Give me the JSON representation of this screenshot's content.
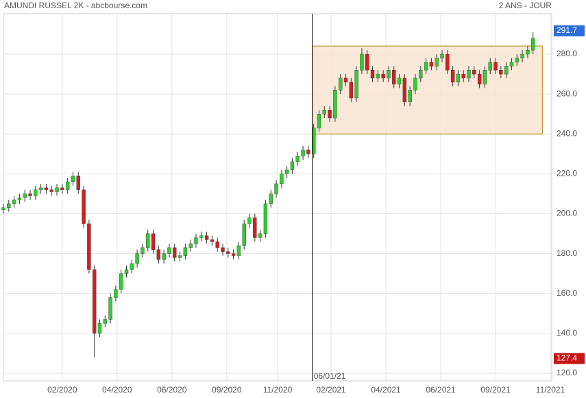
{
  "chart_data": {
    "type": "candlestick",
    "title": "AMUNDI RUSSEL 2K - abcbourse.com",
    "subtitle": "2 ANS - JOUR",
    "up_color": "#33cc33",
    "down_color": "#cc2222",
    "grid": true,
    "xlim": [
      0,
      410
    ],
    "ylim": [
      116.2,
      300.3
    ],
    "xticks": [
      {
        "value": 44,
        "label": "02/2020"
      },
      {
        "value": 85,
        "label": "04/2020"
      },
      {
        "value": 126,
        "label": "06/2020"
      },
      {
        "value": 167,
        "label": "09/2020"
      },
      {
        "value": 205,
        "label": "11/2020"
      },
      {
        "value": 245,
        "label": "02/2021"
      },
      {
        "value": 286,
        "label": "04/2021"
      },
      {
        "value": 327,
        "label": "06/2021"
      },
      {
        "value": 368,
        "label": "09/2021"
      },
      {
        "value": 409,
        "label": "11/2021"
      }
    ],
    "yticks": [
      {
        "value": 120,
        "label": "120.0"
      },
      {
        "value": 140,
        "label": "140.0"
      },
      {
        "value": 160,
        "label": "160.0"
      },
      {
        "value": 180,
        "label": "180.0"
      },
      {
        "value": 200,
        "label": "200.0"
      },
      {
        "value": 220,
        "label": "220.0"
      },
      {
        "value": 240,
        "label": "240.0"
      },
      {
        "value": 260,
        "label": "260.0"
      },
      {
        "value": 280,
        "label": "280.0"
      }
    ],
    "x": [
      0,
      4,
      8,
      12,
      16,
      20,
      24,
      28,
      32,
      36,
      40,
      44,
      48,
      52,
      56,
      60,
      64,
      68,
      72,
      76,
      80,
      84,
      88,
      92,
      96,
      100,
      104,
      108,
      112,
      116,
      120,
      124,
      128,
      132,
      136,
      140,
      144,
      148,
      152,
      156,
      160,
      164,
      168,
      172,
      176,
      180,
      184,
      188,
      192,
      196,
      200,
      204,
      208,
      212,
      216,
      220,
      224,
      228,
      232,
      236,
      240,
      244,
      248,
      252,
      256,
      260,
      264,
      268,
      272,
      276,
      280,
      284,
      288,
      292,
      296,
      300,
      304,
      308,
      312,
      316,
      320,
      324,
      328,
      332,
      336,
      340,
      344,
      348,
      352,
      356,
      360,
      364,
      368,
      372,
      376,
      380,
      384,
      388,
      392,
      396
    ],
    "open": [
      202,
      203,
      205,
      207,
      208,
      210,
      209,
      212,
      213,
      212,
      211,
      213,
      212,
      216,
      219,
      212,
      195,
      172,
      140,
      145,
      147,
      158,
      162,
      170,
      172,
      175,
      180,
      183,
      190,
      182,
      177,
      180,
      183,
      178,
      179,
      183,
      185,
      188,
      189,
      187,
      186,
      183,
      181,
      180,
      179,
      184,
      195,
      198,
      188,
      190,
      205,
      210,
      215,
      220,
      222,
      226,
      229,
      232,
      230,
      243,
      250,
      252,
      248,
      262,
      268,
      266,
      258,
      272,
      280,
      272,
      268,
      270,
      268,
      272,
      265,
      268,
      256,
      262,
      268,
      272,
      276,
      274,
      278,
      280,
      272,
      266,
      270,
      268,
      272,
      270,
      265,
      272,
      276,
      272,
      270,
      274,
      276,
      278,
      280,
      282
    ],
    "high": [
      205,
      207,
      209,
      210,
      212,
      212,
      214,
      215,
      215,
      214,
      215,
      215,
      218,
      221,
      221,
      214,
      197,
      174,
      147,
      149,
      160,
      164,
      172,
      174,
      177,
      182,
      185,
      192,
      192,
      184,
      182,
      185,
      185,
      181,
      185,
      187,
      190,
      191,
      191,
      189,
      188,
      185,
      183,
      182,
      186,
      197,
      200,
      200,
      192,
      207,
      212,
      217,
      222,
      224,
      228,
      231,
      234,
      234,
      245,
      252,
      254,
      254,
      264,
      270,
      270,
      268,
      274,
      283,
      282,
      274,
      272,
      272,
      274,
      274,
      270,
      270,
      264,
      270,
      274,
      278,
      278,
      280,
      282,
      282,
      274,
      272,
      272,
      274,
      274,
      272,
      274,
      278,
      278,
      274,
      276,
      278,
      280,
      282,
      284,
      291
    ],
    "low": [
      200,
      201,
      203,
      205,
      206,
      207,
      207,
      210,
      210,
      209,
      209,
      210,
      210,
      214,
      210,
      193,
      170,
      128,
      138,
      143,
      145,
      156,
      160,
      168,
      170,
      173,
      178,
      181,
      180,
      175,
      175,
      178,
      176,
      176,
      177,
      181,
      183,
      186,
      185,
      184,
      181,
      179,
      178,
      177,
      177,
      182,
      193,
      186,
      186,
      188,
      203,
      208,
      213,
      218,
      220,
      224,
      227,
      228,
      228,
      241,
      248,
      246,
      246,
      260,
      264,
      256,
      256,
      270,
      270,
      266,
      266,
      266,
      266,
      263,
      263,
      254,
      254,
      260,
      266,
      270,
      272,
      272,
      276,
      270,
      264,
      264,
      266,
      266,
      268,
      263,
      263,
      270,
      270,
      268,
      268,
      272,
      274,
      276,
      278,
      280
    ],
    "close": [
      203,
      205,
      207,
      208,
      210,
      209,
      212,
      213,
      212,
      211,
      213,
      212,
      216,
      219,
      212,
      195,
      172,
      140,
      145,
      147,
      158,
      162,
      170,
      172,
      175,
      180,
      183,
      190,
      182,
      177,
      180,
      183,
      178,
      179,
      183,
      185,
      188,
      189,
      187,
      186,
      183,
      181,
      180,
      179,
      184,
      195,
      198,
      188,
      190,
      205,
      210,
      215,
      220,
      222,
      226,
      229,
      232,
      230,
      243,
      250,
      252,
      248,
      262,
      268,
      266,
      258,
      272,
      280,
      272,
      268,
      270,
      268,
      272,
      265,
      268,
      256,
      262,
      268,
      272,
      276,
      274,
      278,
      280,
      272,
      266,
      270,
      268,
      272,
      270,
      265,
      272,
      276,
      272,
      270,
      274,
      276,
      278,
      280,
      282,
      288
    ],
    "marker": {
      "x": 231,
      "label": "06/01/21"
    },
    "range_box": {
      "x": [
        231,
        403
      ],
      "y": [
        240,
        284.1
      ],
      "color": "#f9e3d0"
    },
    "price_tags": [
      {
        "value": 291.7,
        "label": "291.7",
        "color": "#2b6fd6"
      },
      {
        "value": 127.4,
        "label": "127.4",
        "color": "#c81414"
      }
    ]
  }
}
